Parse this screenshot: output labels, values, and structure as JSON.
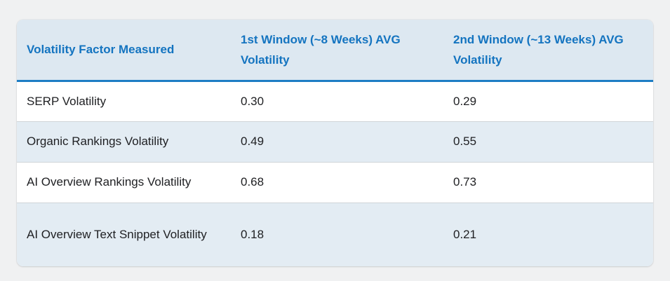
{
  "page": {
    "background_color": "#f0f1f2"
  },
  "table": {
    "columns": [
      "Volatility Factor Measured",
      "1st Window (~8 Weeks) AVG Volatility",
      "2nd Window (~13 Weeks) AVG Volatility"
    ],
    "rows": [
      {
        "factor": "SERP Volatility",
        "window1": "0.30",
        "window2": "0.29"
      },
      {
        "factor": "Organic Rankings Volatility",
        "window1": "0.49",
        "window2": "0.55"
      },
      {
        "factor": "AI Overview Rankings Volatility",
        "window1": "0.68",
        "window2": "0.73"
      },
      {
        "factor": "AI Overview Text Snippet Volatility",
        "window1": "0.18",
        "window2": "0.21"
      }
    ],
    "colors": {
      "header_background": "#dde8f1",
      "header_text": "#1474c0",
      "header_underline": "#1d7dc4",
      "stripe_background": "#e3ecf3",
      "row_background": "#ffffff",
      "body_text": "#202124",
      "divider": "#cfd4d8",
      "page_background": "#f0f1f2"
    }
  },
  "chart_data": {
    "type": "table",
    "title": "",
    "columns": [
      "Volatility Factor Measured",
      "1st Window (~8 Weeks) AVG Volatility",
      "2nd Window (~13 Weeks) AVG Volatility"
    ],
    "rows": [
      [
        "SERP Volatility",
        0.3,
        0.29
      ],
      [
        "Organic Rankings Volatility",
        0.49,
        0.55
      ],
      [
        "AI Overview Rankings Volatility",
        0.68,
        0.73
      ],
      [
        "AI Overview Text Snippet Volatility",
        0.18,
        0.21
      ]
    ],
    "layout_hints": {
      "striped_rows": true,
      "header_style": "bold blue on light blue band with thick blue underline",
      "grid": "horizontal dividers only",
      "card": "rounded corners with subtle shadow on gray page"
    }
  }
}
